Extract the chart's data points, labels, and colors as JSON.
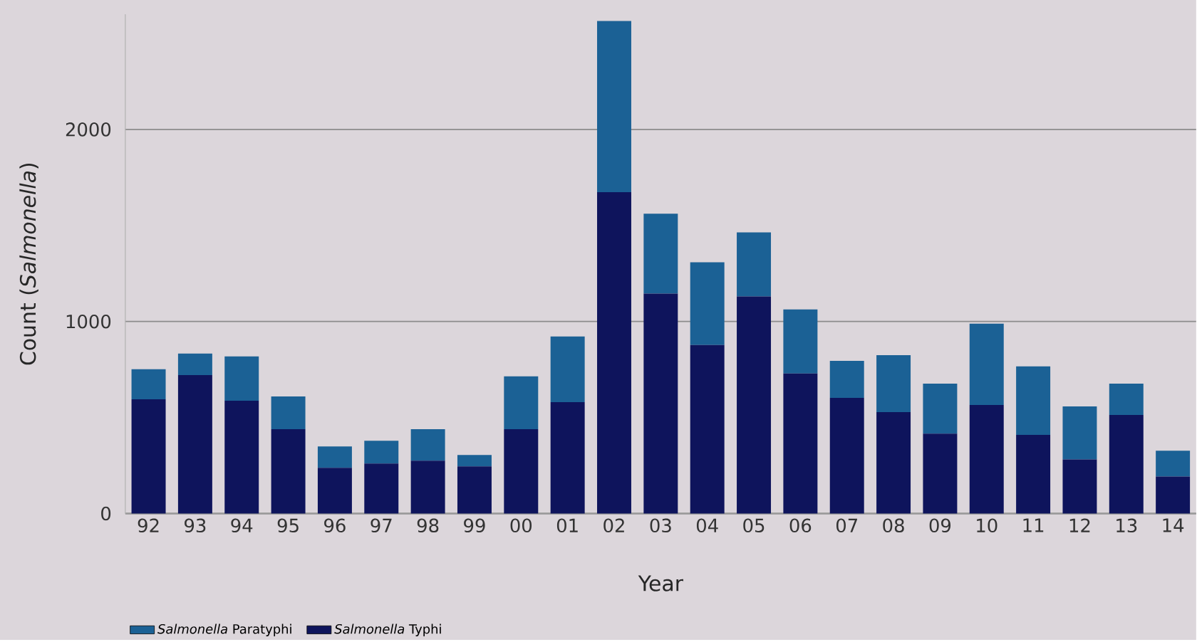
{
  "chart_data": {
    "type": "bar",
    "stacked": true,
    "xlabel": "Year",
    "ylabel": "Count (*Salmonella*)",
    "categories": [
      "92",
      "93",
      "94",
      "95",
      "96",
      "97",
      "98",
      "99",
      "00",
      "01",
      "02",
      "03",
      "04",
      "05",
      "06",
      "07",
      "08",
      "09",
      "10",
      "11",
      "12",
      "13",
      "14"
    ],
    "series": [
      {
        "name": "*Salmonella* Typhi",
        "color": "#0e145c",
        "values": [
          595,
          721,
          587,
          439,
          238,
          260,
          275,
          245,
          439,
          580,
          1673,
          1145,
          877,
          1130,
          729,
          602,
          528,
          416,
          565,
          409,
          282,
          513,
          193
        ]
      },
      {
        "name": "*Salmonella* Paratyphi",
        "color": "#1b6195",
        "values": [
          156,
          112,
          231,
          171,
          111,
          119,
          164,
          60,
          275,
          342,
          892,
          416,
          431,
          334,
          334,
          193,
          297,
          260,
          424,
          357,
          276,
          163,
          134
        ]
      }
    ],
    "ylim": [
      0,
      2600
    ],
    "yticks": [
      0,
      1000,
      2000
    ],
    "grid": "y",
    "legend": "bottom left"
  }
}
